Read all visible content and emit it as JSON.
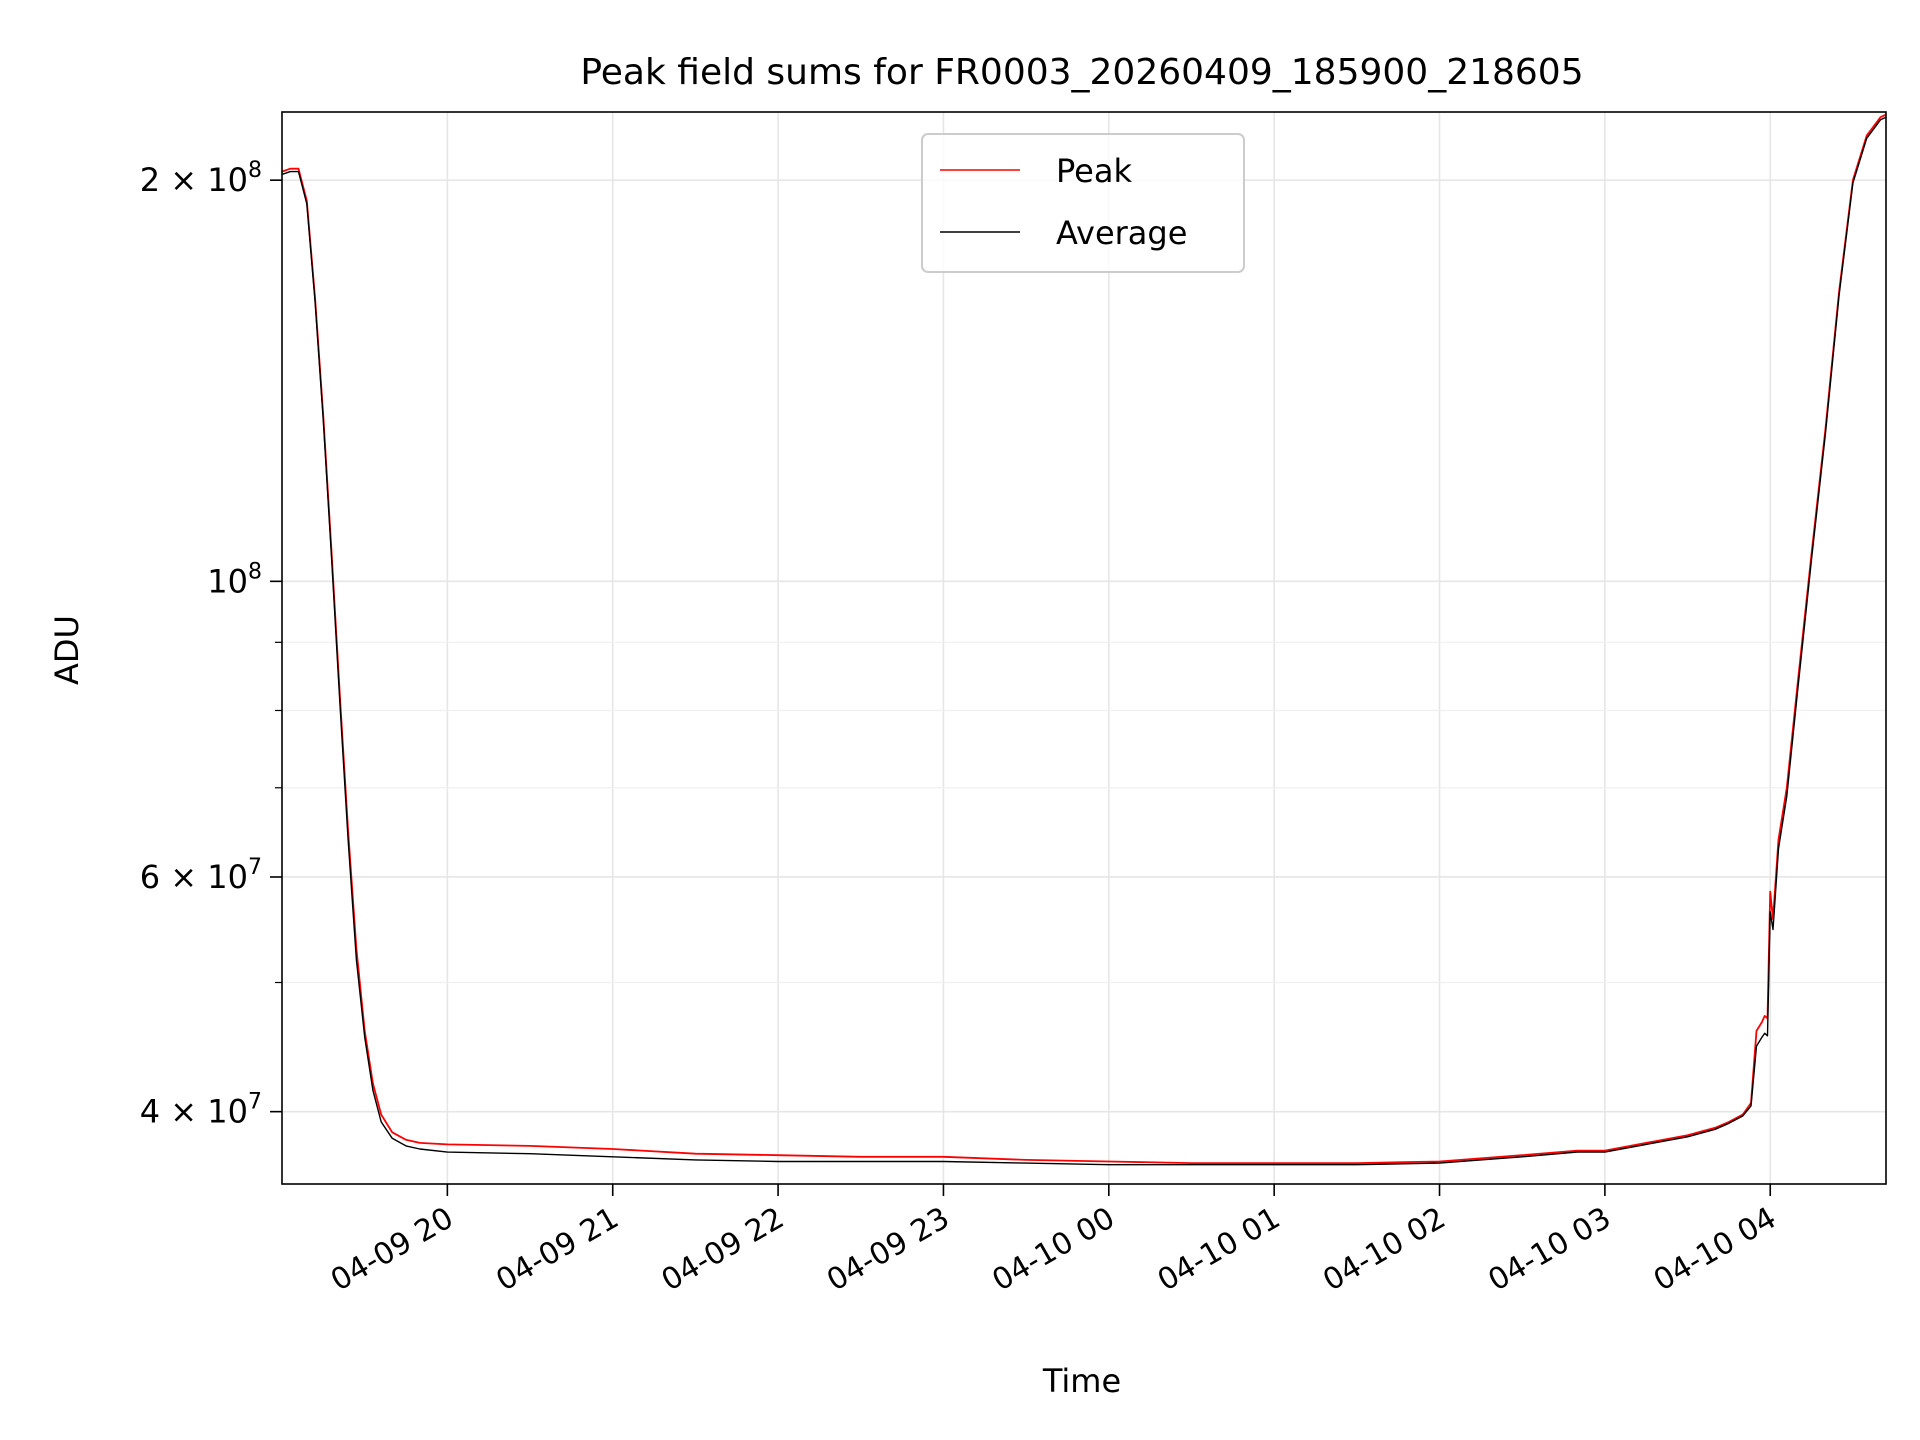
{
  "chart_data": {
    "type": "line",
    "title": "Peak field sums for FR0003_20260409_185900_218605",
    "xlabel": "Time",
    "ylabel": "ADU",
    "yscale": "log",
    "grid": true,
    "legend_position": "top-center",
    "xlim": [
      "2026-04-09 19:00",
      "2026-04-10 04:42"
    ],
    "ylim": [
      35300000,
      225000000
    ],
    "x_ticks": [
      {
        "value": "2026-04-09 20:00",
        "label": "04-09 20"
      },
      {
        "value": "2026-04-09 21:00",
        "label": "04-09 21"
      },
      {
        "value": "2026-04-09 22:00",
        "label": "04-09 22"
      },
      {
        "value": "2026-04-09 23:00",
        "label": "04-09 23"
      },
      {
        "value": "2026-04-10 00:00",
        "label": "04-10 00"
      },
      {
        "value": "2026-04-10 01:00",
        "label": "04-10 01"
      },
      {
        "value": "2026-04-10 02:00",
        "label": "04-10 02"
      },
      {
        "value": "2026-04-10 03:00",
        "label": "04-10 03"
      },
      {
        "value": "2026-04-10 04:00",
        "label": "04-10 04"
      }
    ],
    "y_ticks": [
      {
        "value": 40000000,
        "base": "4 × 10",
        "exp": "7"
      },
      {
        "value": 60000000,
        "base": "6 × 10",
        "exp": "7"
      },
      {
        "value": 100000000,
        "base": "10",
        "exp": "8"
      },
      {
        "value": 200000000,
        "base": "2 × 10",
        "exp": "8"
      }
    ],
    "y_minor_ticks": [
      50000000,
      70000000,
      80000000,
      90000000
    ],
    "series": [
      {
        "name": "Peak",
        "color": "#ff0000",
        "x": [
          "2026-04-09 19:00",
          "2026-04-09 19:03",
          "2026-04-09 19:06",
          "2026-04-09 19:09",
          "2026-04-09 19:12",
          "2026-04-09 19:15",
          "2026-04-09 19:18",
          "2026-04-09 19:21",
          "2026-04-09 19:24",
          "2026-04-09 19:27",
          "2026-04-09 19:30",
          "2026-04-09 19:33",
          "2026-04-09 19:36",
          "2026-04-09 19:40",
          "2026-04-09 19:45",
          "2026-04-09 19:50",
          "2026-04-09 20:00",
          "2026-04-09 20:30",
          "2026-04-09 21:00",
          "2026-04-09 21:30",
          "2026-04-09 22:00",
          "2026-04-09 22:30",
          "2026-04-09 23:00",
          "2026-04-09 23:30",
          "2026-04-10 00:00",
          "2026-04-10 00:30",
          "2026-04-10 01:00",
          "2026-04-10 01:30",
          "2026-04-10 02:00",
          "2026-04-10 02:30",
          "2026-04-10 02:50",
          "2026-04-10 03:00",
          "2026-04-10 03:15",
          "2026-04-10 03:30",
          "2026-04-10 03:40",
          "2026-04-10 03:45",
          "2026-04-10 03:50",
          "2026-04-10 03:53",
          "2026-04-10 03:55",
          "2026-04-10 03:57",
          "2026-04-10 03:58",
          "2026-04-10 03:59",
          "2026-04-10 04:00",
          "2026-04-10 04:01",
          "2026-04-10 04:03",
          "2026-04-10 04:06",
          "2026-04-10 04:10",
          "2026-04-10 04:15",
          "2026-04-10 04:20",
          "2026-04-10 04:25",
          "2026-04-10 04:30",
          "2026-04-10 04:35",
          "2026-04-10 04:40",
          "2026-04-10 04:42"
        ],
        "y": [
          203000000,
          204000000,
          204000000,
          193000000,
          163000000,
          133000000,
          105000000,
          82000000,
          65000000,
          53000000,
          46000000,
          42000000,
          39800000,
          38600000,
          38100000,
          37900000,
          37800000,
          37700000,
          37500000,
          37200000,
          37100000,
          37000000,
          37000000,
          36800000,
          36700000,
          36600000,
          36600000,
          36600000,
          36700000,
          37100000,
          37400000,
          37400000,
          37900000,
          38400000,
          38900000,
          39300000,
          39800000,
          40600000,
          46000000,
          46700000,
          47200000,
          47000000,
          58500000,
          55800000,
          64000000,
          70000000,
          84000000,
          105000000,
          130000000,
          165000000,
          200000000,
          216000000,
          223000000,
          224000000
        ]
      },
      {
        "name": "Average",
        "color": "#000000",
        "x": [
          "2026-04-09 19:00",
          "2026-04-09 19:03",
          "2026-04-09 19:06",
          "2026-04-09 19:09",
          "2026-04-09 19:12",
          "2026-04-09 19:15",
          "2026-04-09 19:18",
          "2026-04-09 19:21",
          "2026-04-09 19:24",
          "2026-04-09 19:27",
          "2026-04-09 19:30",
          "2026-04-09 19:33",
          "2026-04-09 19:36",
          "2026-04-09 19:40",
          "2026-04-09 19:45",
          "2026-04-09 19:50",
          "2026-04-09 20:00",
          "2026-04-09 20:30",
          "2026-04-09 21:00",
          "2026-04-09 21:30",
          "2026-04-09 22:00",
          "2026-04-09 22:30",
          "2026-04-09 23:00",
          "2026-04-09 23:30",
          "2026-04-10 00:00",
          "2026-04-10 00:30",
          "2026-04-10 01:00",
          "2026-04-10 01:30",
          "2026-04-10 02:00",
          "2026-04-10 02:30",
          "2026-04-10 02:50",
          "2026-04-10 03:00",
          "2026-04-10 03:15",
          "2026-04-10 03:30",
          "2026-04-10 03:40",
          "2026-04-10 03:45",
          "2026-04-10 03:50",
          "2026-04-10 03:53",
          "2026-04-10 03:55",
          "2026-04-10 03:57",
          "2026-04-10 03:58",
          "2026-04-10 03:59",
          "2026-04-10 04:00",
          "2026-04-10 04:01",
          "2026-04-10 04:03",
          "2026-04-10 04:06",
          "2026-04-10 04:10",
          "2026-04-10 04:15",
          "2026-04-10 04:20",
          "2026-04-10 04:25",
          "2026-04-10 04:30",
          "2026-04-10 04:35",
          "2026-04-10 04:40",
          "2026-04-10 04:42"
        ],
        "y": [
          202000000,
          203000000,
          203000000,
          192000000,
          162000000,
          132000000,
          104000000,
          81000000,
          64000000,
          52000000,
          45500000,
          41500000,
          39300000,
          38200000,
          37700000,
          37500000,
          37300000,
          37200000,
          37000000,
          36800000,
          36700000,
          36700000,
          36700000,
          36600000,
          36500000,
          36500000,
          36500000,
          36500000,
          36600000,
          37000000,
          37300000,
          37300000,
          37800000,
          38300000,
          38800000,
          39200000,
          39700000,
          40400000,
          44800000,
          45500000,
          45800000,
          45600000,
          56500000,
          54800000,
          63000000,
          69000000,
          83000000,
          104000000,
          129000000,
          164000000,
          199000000,
          215000000,
          222000000,
          223000000
        ]
      }
    ]
  }
}
